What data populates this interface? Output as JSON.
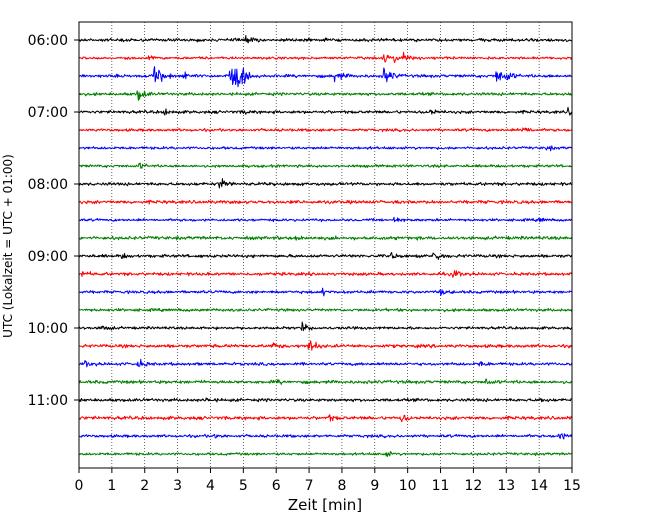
{
  "chart_data": {
    "type": "line",
    "title": "",
    "xlabel": "Zeit  [min]",
    "ylabel": "UTC (Lokalzeit = UTC + 01:00)",
    "xlim": [
      0,
      15
    ],
    "x_ticks": [
      0,
      1,
      2,
      3,
      4,
      5,
      6,
      7,
      8,
      9,
      10,
      11,
      12,
      13,
      14,
      15
    ],
    "y_tick_labels": [
      "06:00",
      "07:00",
      "08:00",
      "09:00",
      "10:00",
      "11:00"
    ],
    "grid": "vertical dotted lines at each minute",
    "trace_interval_minutes": 15,
    "trace_colors": [
      "#000000",
      "#ff0000",
      "#0000ff",
      "#007f00"
    ],
    "traces": [
      {
        "start": "06:00",
        "events": [
          [
            5.05,
            0.5
          ]
        ]
      },
      {
        "start": "06:15",
        "events": [
          [
            2.1,
            0.35
          ],
          [
            9.3,
            0.6
          ],
          [
            9.6,
            0.55
          ],
          [
            9.9,
            0.5
          ]
        ]
      },
      {
        "start": "06:30",
        "events": [
          [
            2.3,
            1.6
          ],
          [
            3.2,
            0.5
          ],
          [
            4.6,
            1.9
          ],
          [
            4.8,
            1.6
          ],
          [
            7.8,
            0.8
          ],
          [
            9.3,
            1.2
          ],
          [
            12.7,
            1.1
          ],
          [
            13.0,
            0.7
          ]
        ]
      },
      {
        "start": "06:45",
        "events": [
          [
            1.8,
            0.9
          ]
        ]
      },
      {
        "start": "07:00",
        "events": [
          [
            2.6,
            0.5
          ],
          [
            5.0,
            0.3
          ],
          [
            10.6,
            0.7
          ],
          [
            14.9,
            0.5
          ]
        ]
      },
      {
        "start": "07:15",
        "events": [
          [
            13.5,
            0.7
          ]
        ]
      },
      {
        "start": "07:30",
        "events": [
          [
            14.2,
            0.4
          ]
        ]
      },
      {
        "start": "07:45",
        "events": [
          [
            1.85,
            0.35
          ]
        ]
      },
      {
        "start": "08:00",
        "events": [
          [
            4.3,
            0.8
          ]
        ]
      },
      {
        "start": "08:15",
        "events": []
      },
      {
        "start": "08:30",
        "events": [
          [
            9.6,
            0.35
          ],
          [
            14.0,
            0.3
          ]
        ]
      },
      {
        "start": "08:45",
        "events": [
          [
            6.6,
            0.5
          ]
        ]
      },
      {
        "start": "09:00",
        "events": [
          [
            1.3,
            0.3
          ],
          [
            9.5,
            0.4
          ],
          [
            10.8,
            0.8
          ]
        ]
      },
      {
        "start": "09:15",
        "events": [
          [
            0.1,
            0.4
          ],
          [
            11.4,
            0.6
          ]
        ]
      },
      {
        "start": "09:30",
        "events": [
          [
            7.4,
            0.4
          ],
          [
            11.0,
            0.4
          ]
        ]
      },
      {
        "start": "09:45",
        "events": []
      },
      {
        "start": "10:00",
        "events": [
          [
            0.7,
            0.5
          ],
          [
            6.8,
            0.6
          ]
        ]
      },
      {
        "start": "10:15",
        "events": [
          [
            5.9,
            0.4
          ],
          [
            7.0,
            1.0
          ]
        ]
      },
      {
        "start": "10:30",
        "events": [
          [
            0.2,
            0.4
          ],
          [
            1.8,
            0.6
          ],
          [
            12.2,
            0.3
          ]
        ]
      },
      {
        "start": "10:45",
        "events": [
          [
            6.0,
            0.3
          ],
          [
            12.4,
            0.4
          ]
        ]
      },
      {
        "start": "11:00",
        "events": [
          [
            3.9,
            0.3
          ],
          [
            14.0,
            0.3
          ]
        ]
      },
      {
        "start": "11:15",
        "events": [
          [
            7.6,
            0.4
          ],
          [
            9.8,
            0.6
          ]
        ]
      },
      {
        "start": "11:30",
        "events": [
          [
            4.1,
            0.3
          ],
          [
            14.6,
            0.7
          ]
        ]
      },
      {
        "start": "11:45",
        "events": [
          [
            9.3,
            0.5
          ]
        ]
      }
    ]
  }
}
